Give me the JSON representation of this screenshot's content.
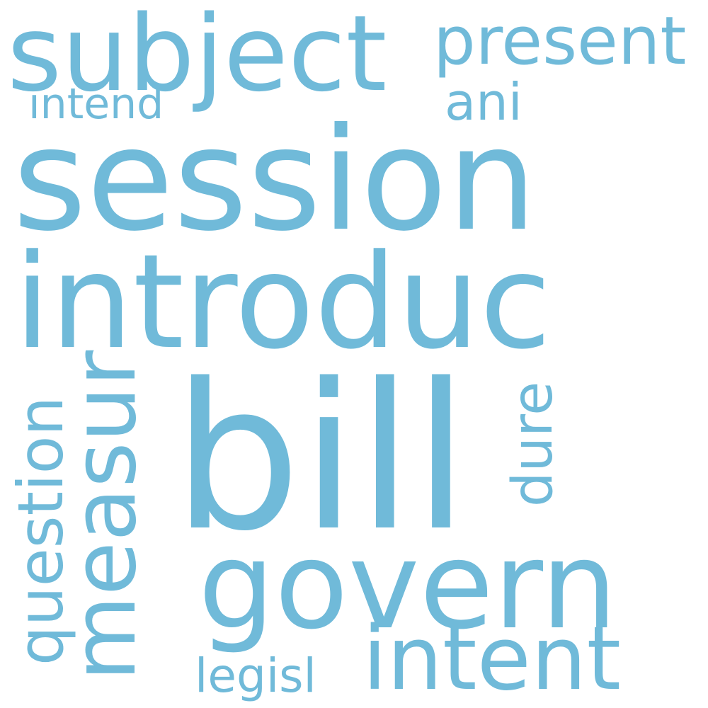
{
  "word_cloud": {
    "color": "#70bad9",
    "background": "#ffffff",
    "words": {
      "bill": "bill",
      "session": "session",
      "introduc": "introduc",
      "govern": "govern",
      "subject": "subject",
      "intent": "intent",
      "measur": "measur",
      "present": "present",
      "question": "question",
      "dure": "dure",
      "ani": "ani",
      "intend": "intend",
      "legisl": "legisl"
    },
    "vertical_words": [
      "question",
      "measur",
      "dure"
    ]
  }
}
